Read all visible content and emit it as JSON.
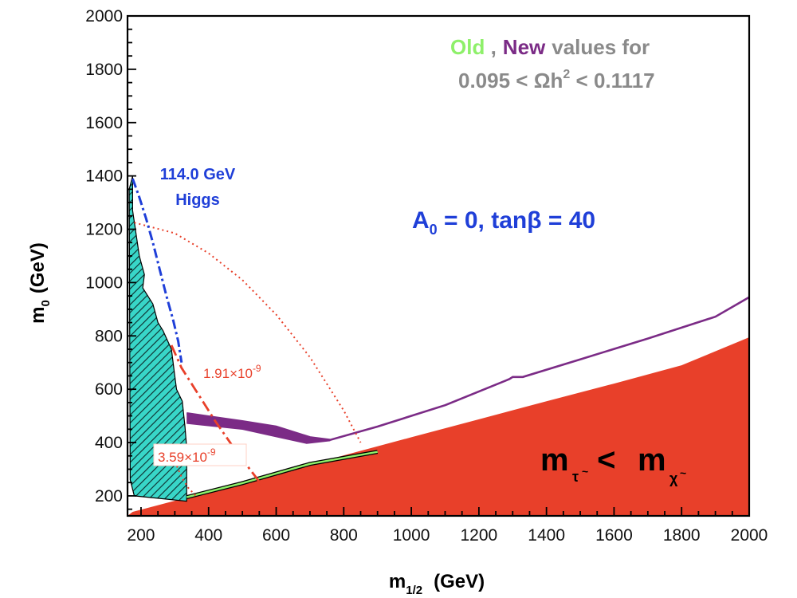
{
  "chart_data": {
    "type": "line",
    "title": "",
    "xlabel": {
      "main": "m",
      "sub": "1/2",
      "units": "(GeV)"
    },
    "ylabel": {
      "main": "m",
      "sub": "0",
      "units": "(GeV)"
    },
    "xlim": [
      160,
      2000
    ],
    "ylim": [
      125,
      2000
    ],
    "x_ticks": [
      200,
      400,
      600,
      800,
      1000,
      1200,
      1400,
      1600,
      1800,
      2000
    ],
    "y_ticks": [
      200,
      400,
      600,
      800,
      1000,
      1200,
      1400,
      1600,
      1800,
      2000
    ],
    "colors": {
      "stau_region": "#e8402a",
      "new_band": "#7b2b86",
      "old_band": "#8ef06a",
      "excluded": "#38d6c8",
      "higgs": "#1f3fd8",
      "gminus2": "#e8402a",
      "axis": "#000000",
      "legend_gray": "#8a8a8a",
      "param_blue": "#1f3fd8"
    },
    "series": [
      {
        "name": "stau-LSP region boundary (m_stau < m_chi)",
        "x": [
          175,
          400,
          600,
          800,
          1000,
          1200,
          1400,
          1600,
          1800,
          2000
        ],
        "y": [
          140,
          215,
          282,
          352,
          420,
          487,
          555,
          621,
          690,
          795
        ]
      },
      {
        "name": "New relic density band (upper edge)",
        "x": [
          335,
          500,
          600,
          700,
          760,
          900,
          1100,
          1290,
          1300,
          1330,
          1500,
          1700,
          1900,
          2000
        ],
        "y": [
          510,
          480,
          460,
          420,
          410,
          460,
          540,
          638,
          646,
          646,
          712,
          790,
          872,
          945
        ]
      },
      {
        "name": "New relic density band (lower edge)",
        "x": [
          335,
          500,
          600,
          690,
          760
        ],
        "y": [
          470,
          448,
          420,
          395,
          405
        ]
      },
      {
        "name": "Old relic density strip",
        "x": [
          335,
          500,
          700,
          900
        ],
        "y": [
          195,
          248,
          320,
          365
        ]
      },
      {
        "name": "Excluded region boundary (b -> s gamma)",
        "x": [
          175,
          175,
          195,
          210,
          205,
          235,
          250,
          265,
          290,
          300,
          305,
          322,
          330,
          335,
          335,
          180,
          168,
          165
        ],
        "y": [
          1400,
          1270,
          1100,
          1030,
          980,
          920,
          850,
          820,
          750,
          650,
          600,
          555,
          460,
          380,
          180,
          200,
          260,
          1350
        ]
      },
      {
        "name": "114.0 GeV Higgs contour",
        "x": [
          175,
          195,
          215,
          235,
          255,
          275,
          295,
          310,
          320
        ],
        "y": [
          1390,
          1320,
          1240,
          1150,
          1050,
          950,
          860,
          780,
          700
        ]
      },
      {
        "name": "g-2 contour 1.91x10^-9",
        "x": [
          180,
          300,
          400,
          500,
          600,
          700,
          800,
          850
        ],
        "y": [
          1225,
          1185,
          1110,
          1010,
          880,
          720,
          520,
          400
        ]
      },
      {
        "name": "g-2 contour 3.59x10^-9",
        "x": [
          290,
          320,
          360,
          420,
          480,
          540,
          580
        ],
        "y": [
          765,
          680,
          600,
          480,
          370,
          270,
          200
        ]
      },
      {
        "name": "g-2 dotted contour (inner)",
        "x": [
          290,
          300,
          320,
          340,
          370,
          400
        ],
        "y": [
          380,
          330,
          270,
          230,
          190,
          160
        ]
      }
    ],
    "annotations": {
      "legend_old": "Old",
      "legend_sep": " ,",
      "legend_new": "New",
      "legend_rest": "values for",
      "legend_range": "0.095 <  Ωh",
      "legend_range_sup": "2",
      "legend_range_end": " < 0.1117",
      "higgs_line1": "114.0 GeV",
      "higgs_line2": "Higgs",
      "param_a": "A",
      "param_a_sub": "0",
      "param_rest": " = 0, tanβ = 40",
      "gm2_upper": "1.91×10",
      "gm2_upper_exp": "-9",
      "gm2_lower": "3.59×10",
      "gm2_lower_exp": "-9",
      "region_left": "m",
      "region_left_sub": "τ",
      "region_left_tilde": "~",
      "region_op": " < ",
      "region_right": "m",
      "region_right_sub": "χ",
      "region_right_tilde": "~"
    }
  }
}
